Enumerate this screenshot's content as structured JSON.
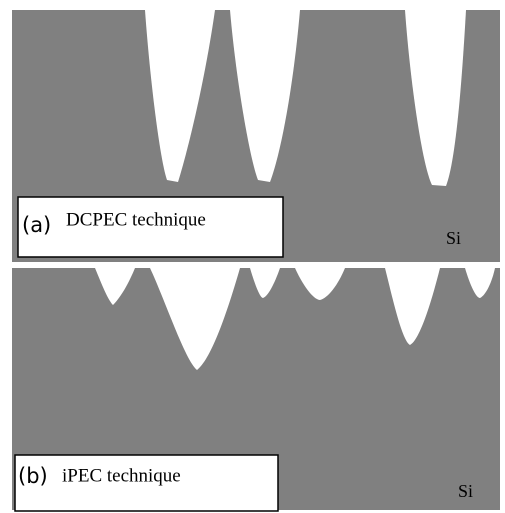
{
  "panels": [
    {
      "letter": "(a)",
      "label": "DCPEC technique",
      "material": "Si"
    },
    {
      "letter": "(b)",
      "label": "iPEC technique",
      "material": "Si"
    }
  ]
}
